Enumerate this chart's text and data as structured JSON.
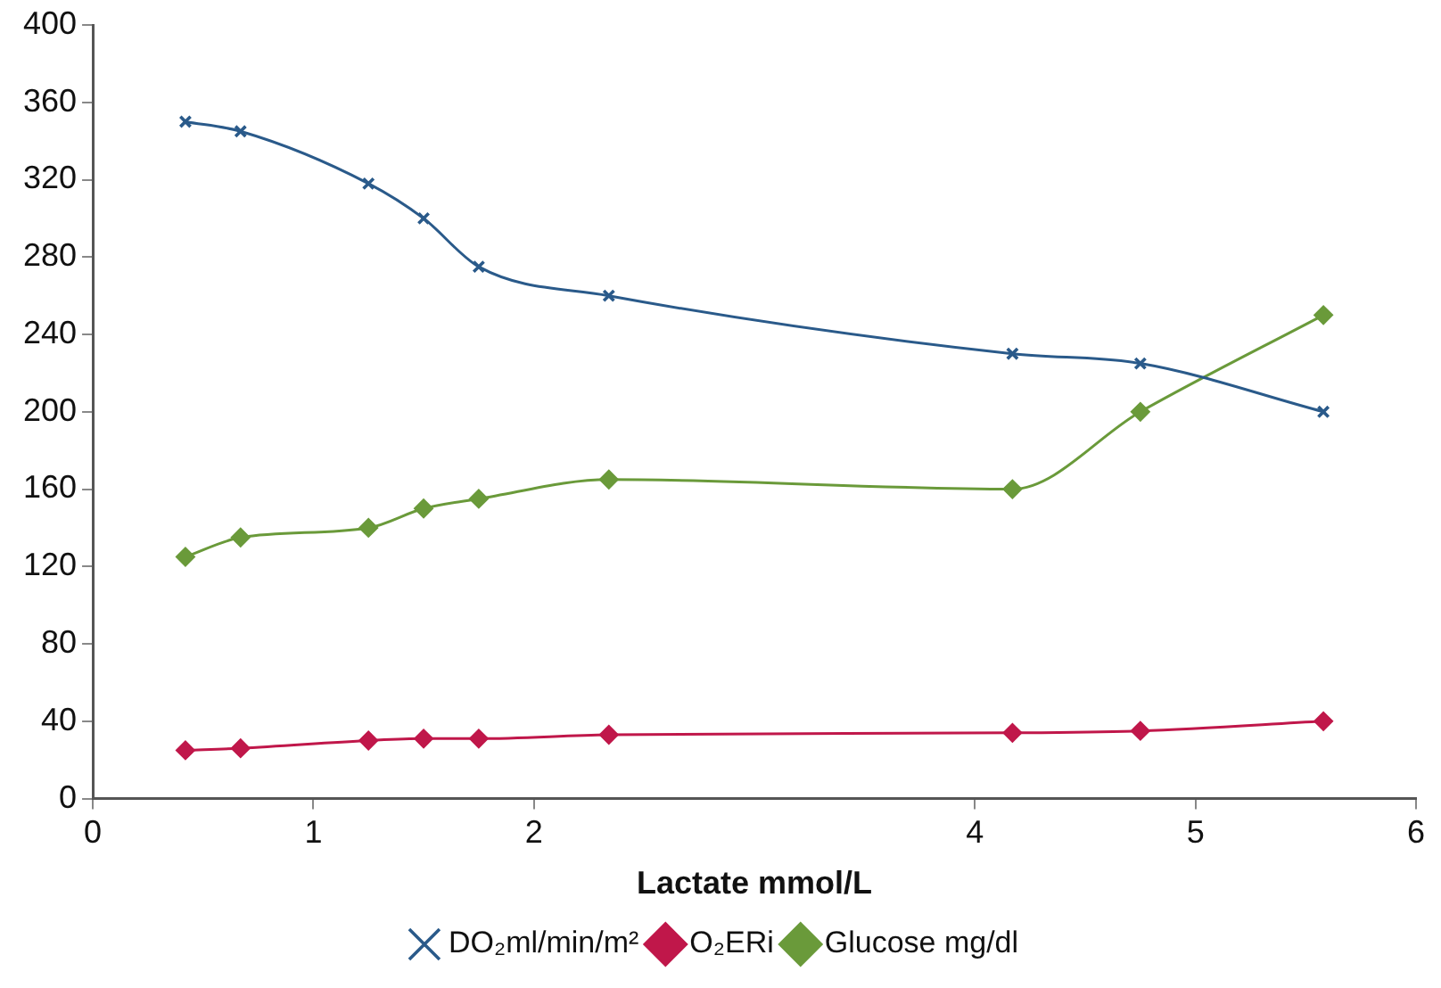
{
  "chart_data": {
    "type": "line",
    "xlabel": "Lactate mmol/L",
    "xlim": [
      0,
      6
    ],
    "xticks": [
      0,
      1,
      2,
      4,
      5,
      6
    ],
    "ylim": [
      0,
      400
    ],
    "yticks": [
      0,
      40,
      80,
      120,
      160,
      200,
      240,
      280,
      320,
      360,
      400
    ],
    "grid": false,
    "legend": "bottom",
    "series": [
      {
        "name": "DO₂ml/min/m²",
        "color": "#2a5a8a",
        "marker": "cross",
        "x": [
          0.42,
          0.67,
          1.25,
          1.5,
          1.75,
          2.34,
          4.17,
          4.75,
          5.58
        ],
        "values": [
          350,
          345,
          318,
          300,
          275,
          260,
          230,
          225,
          200
        ]
      },
      {
        "name": "O₂ERi",
        "color": "#c0174a",
        "marker": "diamond",
        "x": [
          0.42,
          0.67,
          1.25,
          1.5,
          1.75,
          2.34,
          4.17,
          4.75,
          5.58
        ],
        "values": [
          25,
          26,
          30,
          31,
          31,
          33,
          34,
          35,
          40
        ]
      },
      {
        "name": "Glucose mg/dl",
        "color": "#6a9a3a",
        "marker": "diamond",
        "x": [
          0.42,
          0.67,
          1.25,
          1.5,
          1.75,
          2.34,
          4.17,
          4.75,
          5.58
        ],
        "values": [
          125,
          135,
          140,
          150,
          155,
          165,
          160,
          200,
          250
        ]
      }
    ]
  }
}
